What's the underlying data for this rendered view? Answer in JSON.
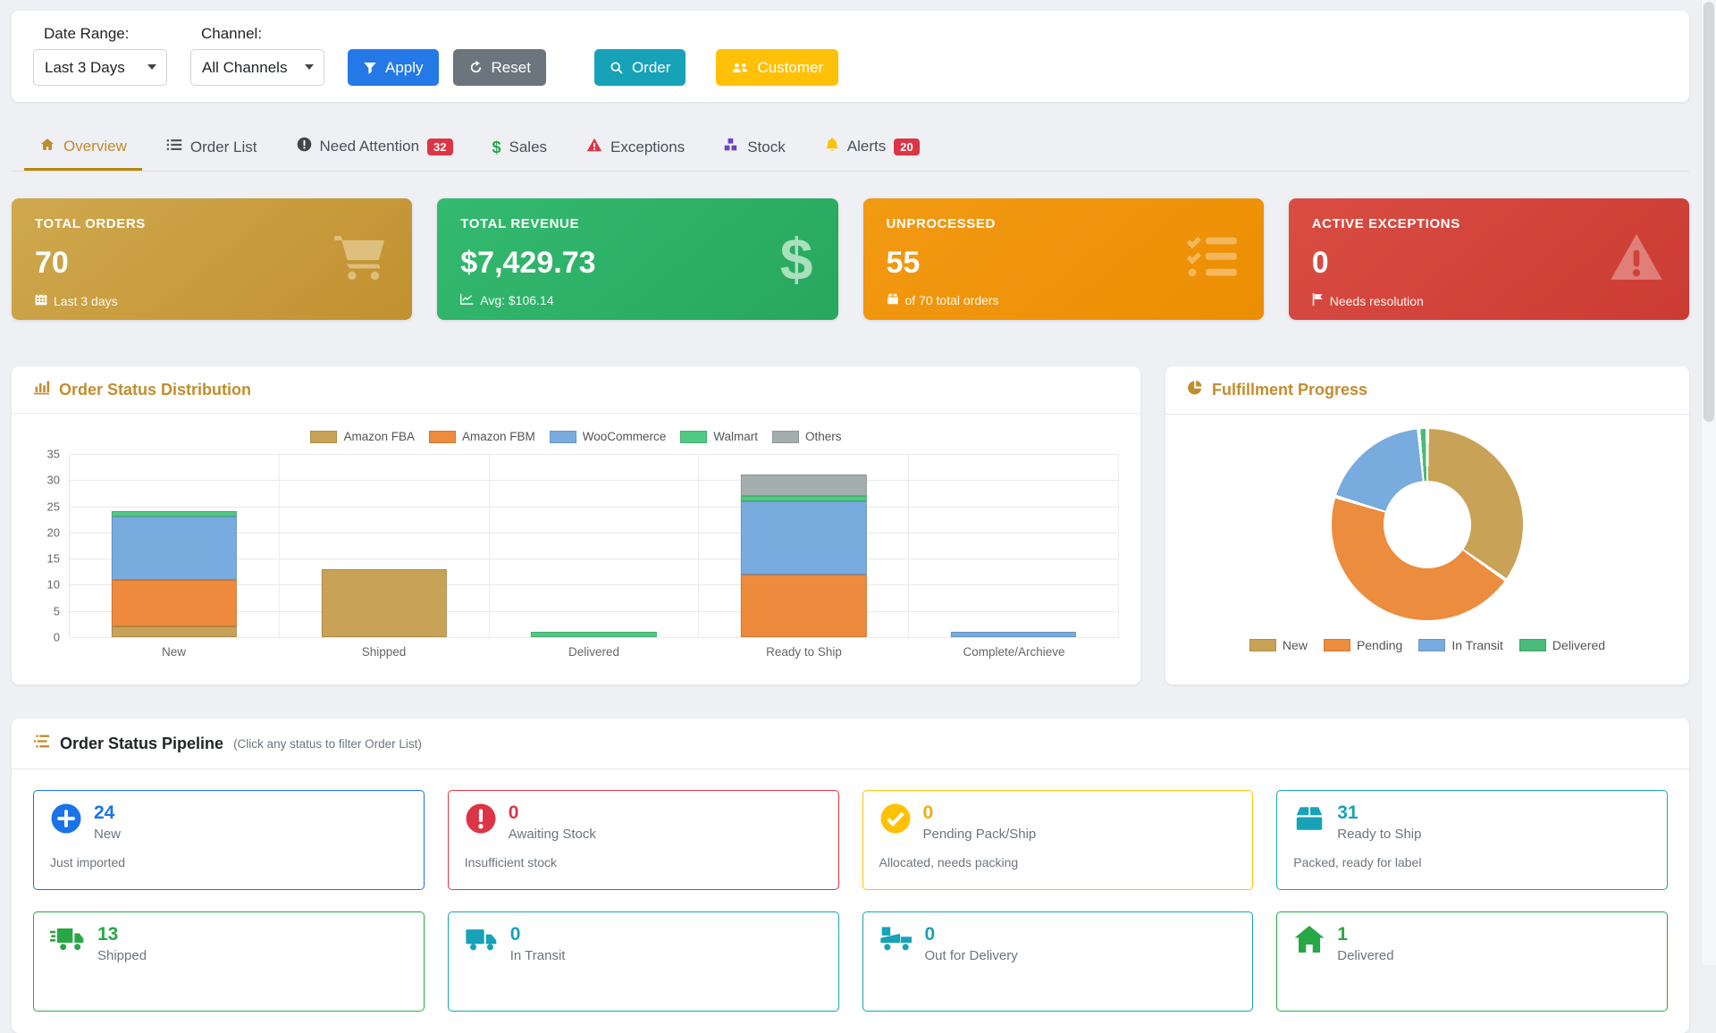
{
  "filter_bar": {
    "date_range_label": "Date Range:",
    "date_range_value": "Last 3 Days",
    "channel_label": "Channel:",
    "channel_value": "All Channels",
    "apply_label": "Apply",
    "reset_label": "Reset",
    "order_label": "Order",
    "customer_label": "Customer",
    "apply_color": "#2479e6",
    "reset_color": "#6c757d",
    "order_color": "#17a2b8",
    "customer_color": "#ffc107"
  },
  "tabs": [
    {
      "label": "Overview",
      "icon": "home-icon",
      "active": true
    },
    {
      "label": "Order List",
      "icon": "list-icon"
    },
    {
      "label": "Need Attention",
      "icon": "exclamation-circle-icon",
      "badge": "32"
    },
    {
      "label": "Sales",
      "icon": "dollar-icon"
    },
    {
      "label": "Exceptions",
      "icon": "warning-triangle-icon"
    },
    {
      "label": "Stock",
      "icon": "cubes-icon"
    },
    {
      "label": "Alerts",
      "icon": "bell-icon",
      "badge": "20"
    }
  ],
  "kpis": [
    {
      "title": "TOTAL ORDERS",
      "value": "70",
      "footnote": "Last 3 days",
      "foot_icon": "calendar-icon",
      "big_icon": "shopping-cart-icon",
      "accent": "#c49733"
    },
    {
      "title": "TOTAL REVENUE",
      "value": "$7,429.73",
      "footnote": "Avg: $106.14",
      "foot_icon": "chart-line-icon",
      "big_icon": "dollar-icon",
      "accent": "#2bab64"
    },
    {
      "title": "UNPROCESSED",
      "value": "55",
      "footnote": "of 70 total orders",
      "foot_icon": "box-icon",
      "big_icon": "tasks-icon",
      "accent": "#ef940b"
    },
    {
      "title": "ACTIVE EXCEPTIONS",
      "value": "0",
      "footnote": "Needs resolution",
      "foot_icon": "flag-icon",
      "big_icon": "warning-triangle-icon",
      "accent": "#d2443b"
    }
  ],
  "charts": {
    "left_title": "Order Status Distribution",
    "right_title": "Fulfillment Progress"
  },
  "chart_data": [
    {
      "type": "bar",
      "stacked": true,
      "title": "Order Status Distribution",
      "categories": [
        "New",
        "Shipped",
        "Delivered",
        "Ready to Ship",
        "Complete/Archieve"
      ],
      "series": [
        {
          "name": "Amazon FBA",
          "color": "#c8a257",
          "values": [
            2,
            13,
            0,
            0,
            0
          ]
        },
        {
          "name": "Amazon FBM",
          "color": "#ed8a3d",
          "values": [
            9,
            0,
            0,
            12,
            0
          ]
        },
        {
          "name": "WooCommerce",
          "color": "#78abde",
          "values": [
            12,
            0,
            0,
            14,
            1
          ]
        },
        {
          "name": "Walmart",
          "color": "#4fc983",
          "values": [
            1,
            0,
            1,
            1,
            0
          ]
        },
        {
          "name": "Others",
          "color": "#a4aeae",
          "values": [
            0,
            0,
            0,
            4,
            0
          ]
        }
      ],
      "ylim": [
        0,
        35
      ],
      "ytick": 5,
      "grid": true,
      "legend_position": "top"
    },
    {
      "type": "pie",
      "title": "Fulfillment Progress",
      "labels": [
        "New",
        "Pending",
        "In Transit",
        "Delivered"
      ],
      "values": [
        24,
        31,
        13,
        1
      ],
      "colors": [
        "#c8a257",
        "#ec8c3e",
        "#78abde",
        "#4aba79"
      ],
      "hole": 0.46,
      "legend_position": "bottom"
    }
  ],
  "pipeline": {
    "title": "Order Status Pipeline",
    "note": "(Click any status to filter Order List)",
    "cards": [
      {
        "value": "24",
        "label": "New",
        "subtitle": "Just imported",
        "icon": "plus-circle-icon",
        "color": "#1a73e8"
      },
      {
        "value": "0",
        "label": "Awaiting Stock",
        "subtitle": "Insufficient stock",
        "icon": "exclamation-circle-icon",
        "color": "#dc3545"
      },
      {
        "value": "0",
        "label": "Pending Pack/Ship",
        "subtitle": "Allocated, needs packing",
        "icon": "check-circle-icon",
        "color": "#ffc107",
        "text_color": "#f0ad0e"
      },
      {
        "value": "31",
        "label": "Ready to Ship",
        "subtitle": "Packed, ready for label",
        "icon": "box-icon",
        "color": "#17a2b8"
      },
      {
        "value": "13",
        "label": "Shipped",
        "subtitle": "",
        "icon": "shipping-fast-icon",
        "color": "#28a745"
      },
      {
        "value": "0",
        "label": "In Transit",
        "subtitle": "",
        "icon": "truck-icon",
        "color": "#17a2b8"
      },
      {
        "value": "0",
        "label": "Out for Delivery",
        "subtitle": "",
        "icon": "truck-loading-icon",
        "color": "#17a2b8"
      },
      {
        "value": "1",
        "label": "Delivered",
        "subtitle": "",
        "icon": "home-icon",
        "color": "#28a745"
      }
    ]
  }
}
